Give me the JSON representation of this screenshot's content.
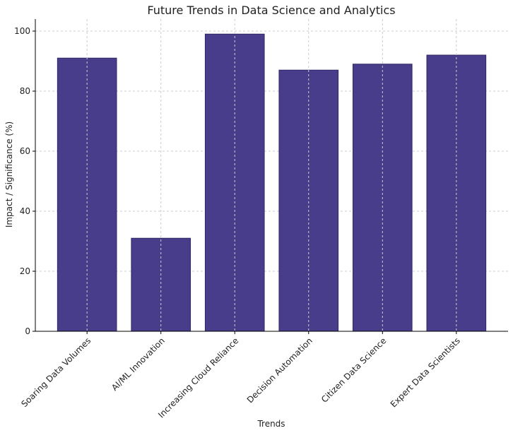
{
  "chart_data": {
    "type": "bar",
    "title": "Future Trends in Data Science and Analytics",
    "xlabel": "Trends",
    "ylabel": "Impact / Significance (%)",
    "categories": [
      "Soaring Data Volumes",
      "AI/ML Innovation",
      "Increasing Cloud Reliance",
      "Decision Automation",
      "Citizen Data Science",
      "Expert Data Scientists"
    ],
    "values": [
      91,
      31,
      99,
      87,
      89,
      92
    ],
    "ylim": [
      0,
      104
    ],
    "yticks": [
      0,
      20,
      40,
      60,
      80,
      100
    ],
    "grid": true,
    "bar_color": "#483D8B"
  }
}
